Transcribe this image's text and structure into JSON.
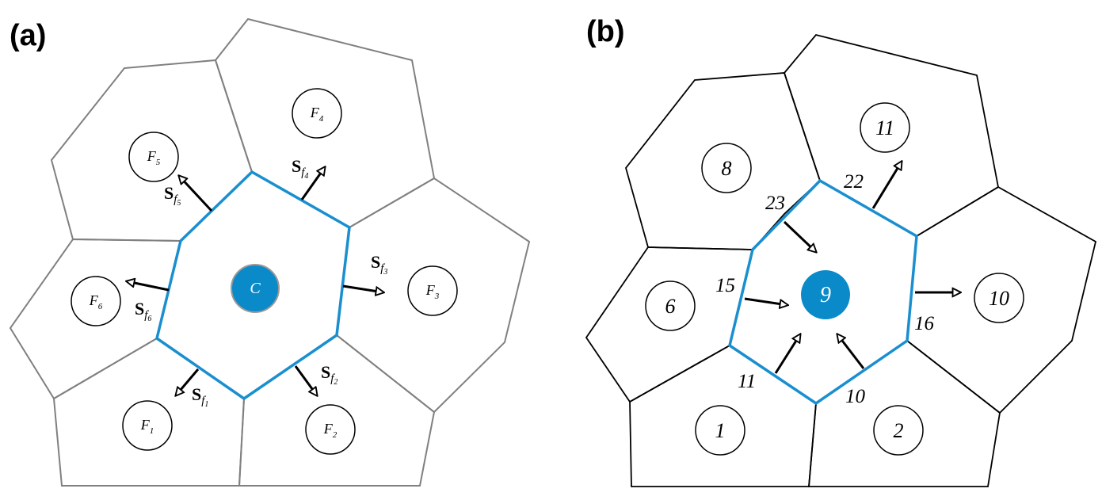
{
  "panel_a": {
    "label": "(a)",
    "center": {
      "letter": "C"
    },
    "neighbors": [
      {
        "letter": "F",
        "sub": "1"
      },
      {
        "letter": "F",
        "sub": "2"
      },
      {
        "letter": "F",
        "sub": "3"
      },
      {
        "letter": "F",
        "sub": "4"
      },
      {
        "letter": "F",
        "sub": "5"
      },
      {
        "letter": "F",
        "sub": "6"
      }
    ],
    "surface_vectors": [
      {
        "s": "S",
        "f": "f",
        "sub": "1"
      },
      {
        "s": "S",
        "f": "f",
        "sub": "2"
      },
      {
        "s": "S",
        "f": "f",
        "sub": "3"
      },
      {
        "s": "S",
        "f": "f",
        "sub": "4"
      },
      {
        "s": "S",
        "f": "f",
        "sub": "5"
      },
      {
        "s": "S",
        "f": "f",
        "sub": "6"
      }
    ]
  },
  "panel_b": {
    "label": "(b)",
    "center": {
      "label": "9"
    },
    "neighbors": [
      "1",
      "2",
      "10",
      "11",
      "8",
      "6"
    ],
    "face_labels": [
      "11",
      "10",
      "16",
      "22",
      "23",
      "15"
    ]
  },
  "colors": {
    "highlight": "#1a8fcf",
    "center_fill": "#0a8ac9",
    "cell_edges_a": "#808080",
    "cell_edges_b": "#000000"
  }
}
